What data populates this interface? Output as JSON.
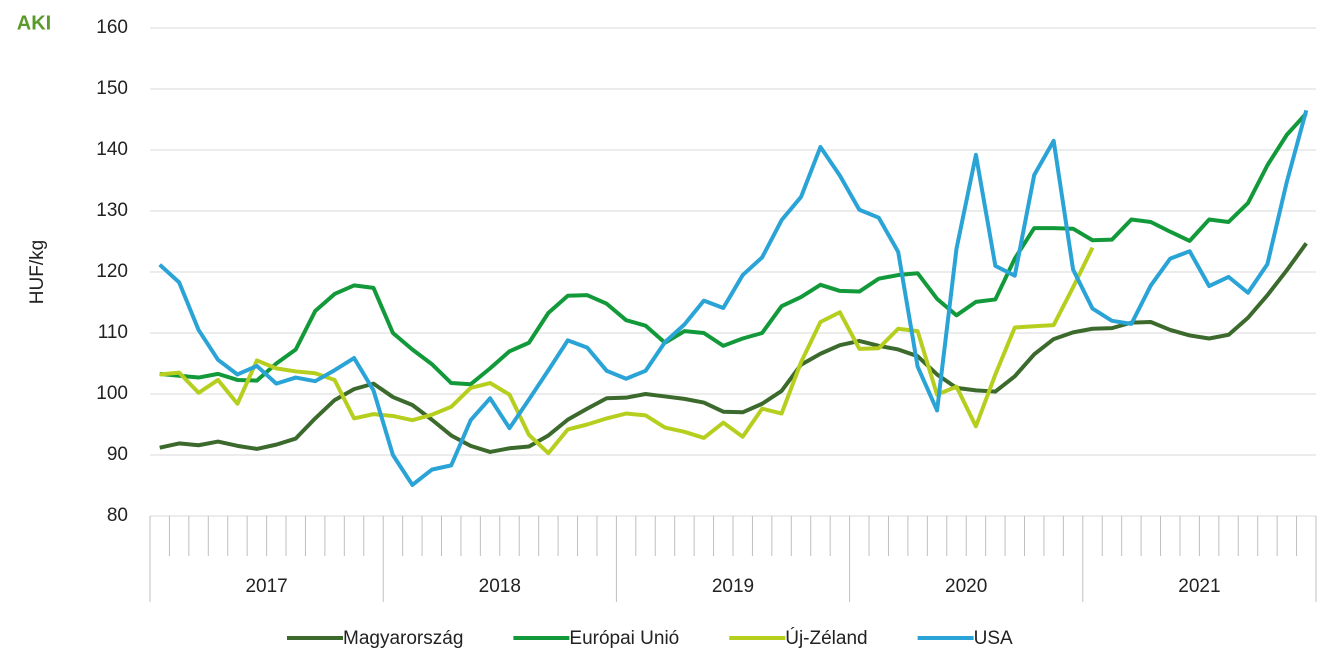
{
  "logo": "AKI",
  "chart_data": {
    "type": "line",
    "ylabel": "HUF/kg",
    "categories": [
      null,
      null,
      null,
      null,
      null,
      null,
      null,
      null,
      null,
      null,
      null,
      null,
      null,
      null,
      null,
      null,
      null,
      null,
      null,
      null,
      null,
      null,
      null,
      null,
      null,
      null,
      null,
      null,
      null,
      null,
      null,
      null,
      null,
      null,
      null,
      null,
      null,
      null,
      null,
      null,
      null,
      null,
      null,
      null,
      null,
      null,
      null,
      null,
      null,
      null,
      null,
      null,
      null,
      null,
      null,
      null,
      null,
      null,
      null,
      null
    ],
    "year_groups": [
      "2017",
      "2018",
      "2019",
      "2020",
      "2021"
    ],
    "ylim": [
      80,
      160
    ],
    "yticks": [
      80,
      90,
      100,
      110,
      120,
      130,
      140,
      150,
      160
    ],
    "grid": true,
    "series": [
      {
        "name": "Magyarország",
        "color": "#3b6a2c",
        "values": [
          91.2,
          91.9,
          91.6,
          92.2,
          91.5,
          91.0,
          91.7,
          92.7,
          96,
          99,
          100.8,
          101.7,
          99.5,
          98.2,
          95.8,
          93.2,
          91.5,
          90.5,
          91.1,
          91.4,
          93.2,
          95.8,
          97.6,
          99.3,
          99.4,
          100,
          99.6,
          99.2,
          98.6,
          97.1,
          97.0,
          98.4,
          100.5,
          104.8,
          106.6,
          108,
          108.7,
          107.9,
          107.3,
          106.2,
          103.2,
          101,
          100.6,
          100.4,
          102.9,
          106.5,
          109,
          110.1,
          110.7,
          110.8,
          111.7,
          111.8,
          110.5,
          109.6,
          109.1,
          109.7,
          112.5,
          116.2,
          120.3,
          124.7
        ]
      },
      {
        "name": "Európai Unió",
        "color": "#12993a",
        "values": [
          103.3,
          103.0,
          102.7,
          103.3,
          102.3,
          102.2,
          105,
          107.3,
          113.6,
          116.4,
          117.8,
          117.4,
          110,
          107.3,
          104.9,
          101.8,
          101.6,
          104.2,
          107,
          108.4,
          113.3,
          116.1,
          116.2,
          114.8,
          112.1,
          111.2,
          108.4,
          110.3,
          110.0,
          107.9,
          109.1,
          110,
          114.4,
          115.9,
          117.9,
          116.9,
          116.8,
          118.9,
          119.5,
          119.8,
          115.6,
          112.9,
          115.1,
          115.5,
          122.2,
          127.2,
          127.2,
          127.1,
          125.2,
          125.3,
          128.6,
          128.2,
          126.6,
          125.1,
          128.6,
          128.2,
          131.3,
          137.5,
          142.5,
          146
        ]
      },
      {
        "name": "Új-Zéland",
        "color": "#b6cf1f",
        "values": [
          103.2,
          103.5,
          100.2,
          102.3,
          98.4,
          105.5,
          104.2,
          103.7,
          103.4,
          102.3,
          96.0,
          96.7,
          96.4,
          95.7,
          96.6,
          97.9,
          101,
          101.8,
          99.9,
          93.3,
          90.3,
          94.2,
          95,
          96,
          96.8,
          96.5,
          94.5,
          93.8,
          92.8,
          95.3,
          93,
          97.6,
          96.8,
          105.2,
          111.8,
          113.4,
          107.4,
          107.5,
          110.7,
          110.3,
          99.9,
          101.2,
          94.7,
          103.2,
          110.9,
          111.1,
          111.3,
          117.5,
          124,
          null,
          null,
          null,
          null,
          null,
          null,
          null,
          null,
          null,
          null,
          null
        ]
      },
      {
        "name": "USA",
        "color": "#2aa3d6",
        "values": [
          121.2,
          118.3,
          110.5,
          105.6,
          103.2,
          104.6,
          101.7,
          102.7,
          102.1,
          103.9,
          105.9,
          100.6,
          90,
          85.1,
          87.6,
          88.3,
          95.7,
          99.3,
          94.4,
          99.1,
          103.9,
          108.8,
          107.6,
          103.8,
          102.5,
          103.8,
          108.5,
          111.4,
          115.3,
          114.1,
          119.5,
          122.4,
          128.5,
          132.3,
          140.5,
          135.8,
          130.2,
          128.9,
          123.3,
          104.5,
          97.3,
          123.8,
          139.2,
          121,
          119.4,
          135.9,
          141.5,
          120.4,
          114,
          112,
          111.5,
          117.8,
          122.2,
          123.4,
          117.7,
          119.2,
          116.6,
          121.3,
          134.8,
          146.5
        ]
      }
    ]
  }
}
